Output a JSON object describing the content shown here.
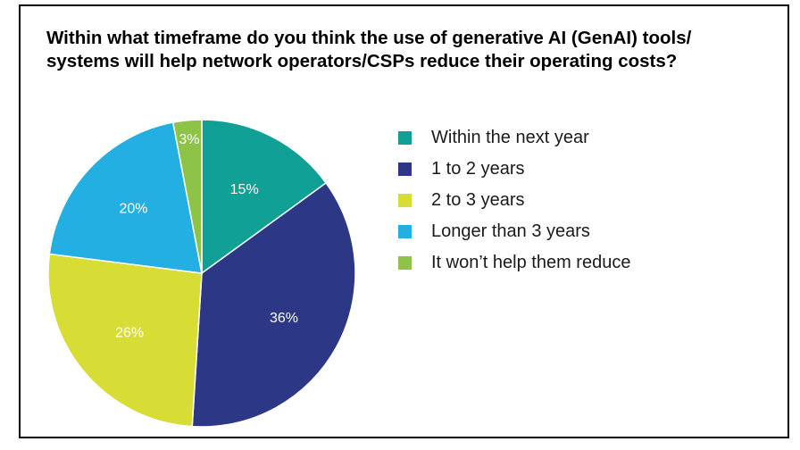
{
  "chart_data": {
    "type": "pie",
    "title_lines": [
      "Within what timeframe do you think the use of generative AI (GenAI) tools/",
      "systems will help network operators/CSPs reduce their operating costs?"
    ],
    "slices": [
      {
        "label": "Within the next year",
        "value": 15,
        "display": "15%",
        "color": "#11a096"
      },
      {
        "label": "1 to 2 years",
        "value": 36,
        "display": "36%",
        "color": "#2c3886"
      },
      {
        "label": "2 to 3 years",
        "value": 26,
        "display": "26%",
        "color": "#d7dd34"
      },
      {
        "label": "Longer than 3 years",
        "value": 20,
        "display": "20%",
        "color": "#24afe3"
      },
      {
        "label": "It won’t help them reduce",
        "value": 3,
        "display": "3%",
        "color": "#8dc346"
      }
    ],
    "legend_position": "right"
  }
}
